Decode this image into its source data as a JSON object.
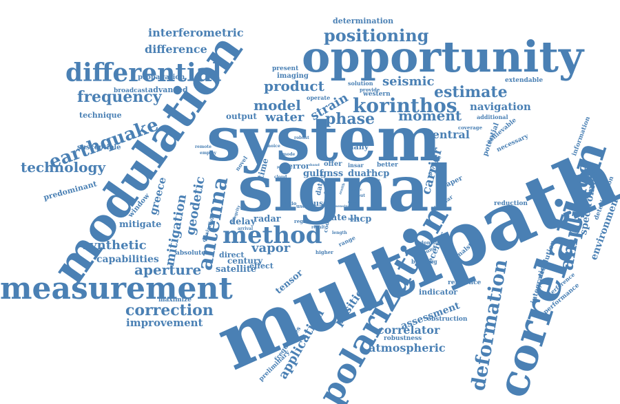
{
  "palette": {
    "word_color": "#4a80b4",
    "background": "#ffffff"
  },
  "words": [
    {
      "text": "multipath",
      "rank": 1
    },
    {
      "text": "system",
      "rank": 1
    },
    {
      "text": "signal",
      "rank": 1
    },
    {
      "text": "modulation",
      "rank": 1
    },
    {
      "text": "opportunity",
      "rank": 1
    },
    {
      "text": "correlation",
      "rank": 1
    },
    {
      "text": "polarization",
      "rank": 1
    },
    {
      "text": "measurement",
      "rank": 2
    },
    {
      "text": "differential",
      "rank": 2
    },
    {
      "text": "method",
      "rank": 2
    },
    {
      "text": "korinthos",
      "rank": 2
    },
    {
      "text": "earthquake",
      "rank": 2
    },
    {
      "text": "deformation",
      "rank": 2
    },
    {
      "text": "amplitude",
      "rank": 2
    },
    {
      "text": "antenna",
      "rank": 2
    },
    {
      "text": "positioning",
      "rank": 3
    },
    {
      "text": "technology",
      "rank": 3
    },
    {
      "text": "correction",
      "rank": 3
    },
    {
      "text": "phase",
      "rank": 3
    },
    {
      "text": "moment",
      "rank": 3
    },
    {
      "text": "estimate",
      "rank": 3
    },
    {
      "text": "frequency",
      "rank": 3
    },
    {
      "text": "product",
      "rank": 3
    },
    {
      "text": "model",
      "rank": 3
    },
    {
      "text": "strain",
      "rank": 3
    },
    {
      "text": "seismic",
      "rank": 3
    },
    {
      "text": "water",
      "rank": 3
    },
    {
      "text": "mitigation",
      "rank": 3
    },
    {
      "text": "geodetic",
      "rank": 3
    },
    {
      "text": "aperture",
      "rank": 3
    },
    {
      "text": "synthetic",
      "rank": 3
    },
    {
      "text": "vapor",
      "rank": 3
    },
    {
      "text": "application",
      "rank": 3
    },
    {
      "text": "position",
      "rank": 3
    },
    {
      "text": "atmospheric",
      "rank": 3
    },
    {
      "text": "correlator",
      "rank": 3
    },
    {
      "text": "carrier",
      "rank": 3
    },
    {
      "text": "interferometric",
      "rank": 4
    },
    {
      "text": "difference",
      "rank": 4
    },
    {
      "text": "navigation",
      "rank": 4
    },
    {
      "text": "central",
      "rank": 4
    },
    {
      "text": "improvement",
      "rank": 4
    },
    {
      "text": "capabilities",
      "rank": 4
    },
    {
      "text": "greece",
      "rank": 4
    },
    {
      "text": "environment",
      "rank": 4
    },
    {
      "text": "spectrometer",
      "rank": 4
    },
    {
      "text": "assessment",
      "rank": 4
    },
    {
      "text": "receiver",
      "rank": 4
    },
    {
      "text": "mitigate",
      "rank": 4
    },
    {
      "text": "delay",
      "rank": 4
    },
    {
      "text": "radar",
      "rank": 4
    },
    {
      "text": "rate",
      "rank": 4
    },
    {
      "text": "lhcp",
      "rank": 4
    },
    {
      "text": "rhcp",
      "rank": 4
    },
    {
      "text": "dual",
      "rank": 4
    },
    {
      "text": "gnss",
      "rank": 4
    },
    {
      "text": "gulf",
      "rank": 4
    },
    {
      "text": "satellite",
      "rank": 4
    },
    {
      "text": "tensor",
      "rank": 4
    },
    {
      "text": "century",
      "rank": 4
    },
    {
      "text": "time",
      "rank": 4
    },
    {
      "text": "output",
      "rank": 4
    },
    {
      "text": "advanced",
      "rank": 5
    },
    {
      "text": "propagation",
      "rank": 5
    },
    {
      "text": "broadcast",
      "rank": 5
    },
    {
      "text": "technique",
      "rank": 5
    },
    {
      "text": "predominant",
      "rank": 5
    },
    {
      "text": "susceptible",
      "rank": 5
    },
    {
      "text": "window",
      "rank": 5
    },
    {
      "text": "absolute",
      "rank": 5
    },
    {
      "text": "direct",
      "rank": 5
    },
    {
      "text": "effect",
      "rank": 5
    },
    {
      "text": "maximize",
      "rank": 5
    },
    {
      "text": "determination",
      "rank": 5
    },
    {
      "text": "imaging",
      "rank": 5
    },
    {
      "text": "present",
      "rank": 5
    },
    {
      "text": "solution",
      "rank": 5
    },
    {
      "text": "western",
      "rank": 5
    },
    {
      "text": "provide",
      "rank": 5
    },
    {
      "text": "operate",
      "rank": 5
    },
    {
      "text": "extendable",
      "rank": 5
    },
    {
      "text": "additional",
      "rank": 5
    },
    {
      "text": "coverage",
      "rank": 5
    },
    {
      "text": "achievable",
      "rank": 5
    },
    {
      "text": "necessary",
      "rank": 5
    },
    {
      "text": "information",
      "rank": 5
    },
    {
      "text": "potential",
      "rank": 5
    },
    {
      "text": "paper",
      "rank": 5
    },
    {
      "text": "many",
      "rank": 5
    },
    {
      "text": "offer",
      "rank": 5
    },
    {
      "text": "error",
      "rank": 5
    },
    {
      "text": "better",
      "rank": 5
    },
    {
      "text": "insar",
      "rank": 5
    },
    {
      "text": "circular",
      "rank": 5
    },
    {
      "text": "purpose",
      "rank": 5
    },
    {
      "text": "reduction",
      "rank": 5
    },
    {
      "text": "deterioration",
      "rank": 5
    },
    {
      "text": "interference",
      "rank": 5
    },
    {
      "text": "performance",
      "rank": 5
    },
    {
      "text": "resolution",
      "rank": 5
    },
    {
      "text": "integration",
      "rank": 5
    },
    {
      "text": "reference",
      "rank": 5
    },
    {
      "text": "indicator",
      "rank": 5
    },
    {
      "text": "signalsthe",
      "rank": 5
    },
    {
      "text": "building",
      "rank": 5
    },
    {
      "text": "domain",
      "rank": 5
    },
    {
      "text": "ground",
      "rank": 5
    },
    {
      "text": "obstruction",
      "rank": 5
    },
    {
      "text": "robustness",
      "rank": 5
    },
    {
      "text": "frequencies",
      "rank": 5
    },
    {
      "text": "preliminary",
      "rank": 5
    },
    {
      "text": "region",
      "rank": 5
    },
    {
      "text": "higher",
      "rank": 5
    },
    {
      "text": "code",
      "rank": 5
    },
    {
      "text": "range",
      "rank": 5
    },
    {
      "text": "length",
      "rank": 5
    },
    {
      "text": "wave",
      "rank": 5
    },
    {
      "text": "result",
      "rank": 5
    },
    {
      "text": "input",
      "rank": 5
    },
    {
      "text": "use",
      "rank": 5
    },
    {
      "text": "data",
      "rank": 5
    },
    {
      "text": "user",
      "rank": 5
    },
    {
      "text": "radio",
      "rank": 5
    },
    {
      "text": "integrity",
      "rank": 5
    },
    {
      "text": "arrival",
      "rank": 5
    },
    {
      "text": "dissimilar",
      "rank": 5
    },
    {
      "text": "novel",
      "rank": 5
    },
    {
      "text": "choice",
      "rank": 5
    },
    {
      "text": "remote",
      "rank": 5
    },
    {
      "text": "employ",
      "rank": 5
    },
    {
      "text": "robust",
      "rank": 5
    },
    {
      "text": "cloud",
      "rank": 5
    },
    {
      "text": "mode",
      "rank": 5
    },
    {
      "text": "prior",
      "rank": 5
    },
    {
      "text": "band",
      "rank": 5
    },
    {
      "text": "global",
      "rank": 5
    },
    {
      "text": "mask",
      "rank": 5
    },
    {
      "text": "static",
      "rank": 5
    },
    {
      "text": "zenith",
      "rank": 5
    },
    {
      "text": "sensing",
      "rank": 5
    },
    {
      "text": "single",
      "rank": 5
    }
  ]
}
